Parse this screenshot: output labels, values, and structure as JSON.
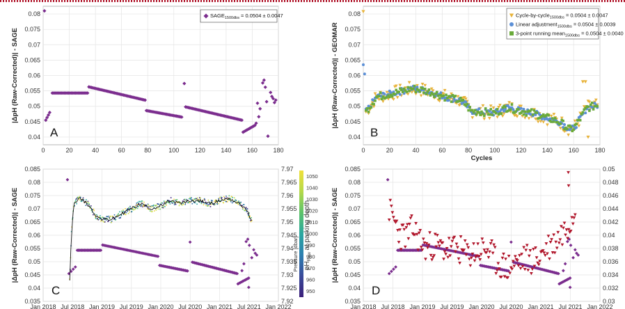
{
  "chart_data": [
    {
      "panel": "A",
      "type": "scatter",
      "ylabel": "|ΔpH (Raw-Corrected)| - SAGE",
      "xlabel": "",
      "xlim": [
        0,
        180
      ],
      "ylim": [
        0.0375,
        0.0825
      ],
      "x_ticks": [
        "0",
        "20",
        "40",
        "60",
        "80",
        "100",
        "120",
        "140",
        "160",
        "180"
      ],
      "y_ticks": [
        "0.04",
        "0.045",
        "0.05",
        "0.055",
        "0.06",
        "0.065",
        "0.07",
        "0.075",
        "0.08"
      ],
      "grid": true,
      "legend": {
        "position": "top-right",
        "entries": [
          {
            "label": "SAGE",
            "sub": "1500dbs",
            "suffix": " = 0.0504 ± 0.0047",
            "color": "#7b2d8e"
          }
        ]
      },
      "segments": [
        {
          "x0": 2,
          "x1": 5,
          "y0": 0.0455,
          "y1": 0.048,
          "n": 4
        },
        {
          "x0": 7,
          "x1": 34,
          "y0": 0.0543,
          "y1": 0.0543,
          "n": 27
        },
        {
          "x0": 35,
          "x1": 78,
          "y0": 0.0563,
          "y1": 0.052,
          "n": 43
        },
        {
          "x0": 79,
          "x1": 106,
          "y0": 0.0486,
          "y1": 0.0465,
          "n": 27
        },
        {
          "x0": 109,
          "x1": 152,
          "y0": 0.0498,
          "y1": 0.0455,
          "n": 43
        },
        {
          "x0": 153,
          "x1": 162,
          "y0": 0.0416,
          "y1": 0.0438,
          "n": 10
        }
      ],
      "points": [
        [
          1,
          0.081
        ],
        [
          108,
          0.0574
        ],
        [
          165,
          0.0466
        ],
        [
          166,
          0.0492
        ],
        [
          168,
          0.0576
        ],
        [
          169,
          0.0585
        ],
        [
          170,
          0.0562
        ],
        [
          171,
          0.0515
        ],
        [
          172,
          0.0403
        ],
        [
          174,
          0.0545
        ],
        [
          175,
          0.0532
        ],
        [
          176,
          0.0525
        ],
        [
          177,
          0.0512
        ],
        [
          178,
          0.052
        ],
        [
          163,
          0.0445
        ],
        [
          164,
          0.051
        ]
      ]
    },
    {
      "panel": "B",
      "type": "scatter",
      "ylabel": "|ΔpH (Raw-Corrected)| - GEOMAR",
      "xlabel": "Cycles",
      "xlim": [
        0,
        180
      ],
      "ylim": [
        0.0375,
        0.0825
      ],
      "x_ticks": [
        "0",
        "20",
        "40",
        "60",
        "80",
        "100",
        "120",
        "140",
        "160",
        "180"
      ],
      "y_ticks": [
        "0.04",
        "0.045",
        "0.05",
        "0.055",
        "0.06",
        "0.065",
        "0.07",
        "0.075",
        "0.08"
      ],
      "grid": true,
      "legend": {
        "position": "top-right",
        "entries": [
          {
            "label": "Cycle-by-cycle",
            "sub": "1500dbs",
            "suffix": " = 0.0504 ± 0.0047",
            "color": "#e8b33a",
            "marker": "triangle-down"
          },
          {
            "label": "Linear adjustment",
            "sub": "1500dbs",
            "suffix": " = 0.0504 ± 0.0039",
            "color": "#5b8fd6",
            "marker": "circle"
          },
          {
            "label": "3-point running mean",
            "sub": "1500dbs",
            "suffix": " = 0.0504 ± 0.0040",
            "color": "#6aaa3a",
            "marker": "square"
          }
        ]
      },
      "trend": [
        [
          0,
          0.047
        ],
        [
          5,
          0.05
        ],
        [
          10,
          0.053
        ],
        [
          20,
          0.054
        ],
        [
          30,
          0.055
        ],
        [
          37,
          0.0558
        ],
        [
          45,
          0.0553
        ],
        [
          55,
          0.0542
        ],
        [
          65,
          0.0527
        ],
        [
          73,
          0.052
        ],
        [
          78,
          0.0505
        ],
        [
          82,
          0.0485
        ],
        [
          90,
          0.0482
        ],
        [
          100,
          0.0478
        ],
        [
          105,
          0.0488
        ],
        [
          110,
          0.0497
        ],
        [
          120,
          0.0485
        ],
        [
          130,
          0.0477
        ],
        [
          140,
          0.0462
        ],
        [
          150,
          0.0448
        ],
        [
          157,
          0.0425
        ],
        [
          160,
          0.0428
        ],
        [
          165,
          0.046
        ],
        [
          170,
          0.0495
        ],
        [
          175,
          0.05
        ],
        [
          180,
          0.0505
        ]
      ],
      "extra_points": [
        [
          0,
          0.0808
        ],
        [
          0,
          0.0635
        ],
        [
          1,
          0.0605
        ],
        [
          167,
          0.058
        ],
        [
          169,
          0.058
        ],
        [
          171,
          0.04
        ]
      ]
    },
    {
      "panel": "C",
      "type": "scatter",
      "ylabel": "|ΔpH (Raw-Corrected)| - SAGE",
      "ylabel_right": "pH",
      "ylabel_right_sub": "Raw",
      "ylabel_right_suffix": " at parking depth",
      "xlim": [
        "2018-01-01",
        "2022-01-01"
      ],
      "x_ticks": [
        "Jan 2018",
        "Jul 2018",
        "Jan 2019",
        "Jul 2019",
        "Jan 2020",
        "Jul 2020",
        "Jan 2021",
        "Jul 2021",
        "Jan 2022"
      ],
      "ylim": [
        0.035,
        0.085
      ],
      "y_ticks": [
        "0.035",
        "0.04",
        "0.045",
        "0.05",
        "0.055",
        "0.06",
        "0.065",
        "0.07",
        "0.075",
        "0.08",
        "0.085"
      ],
      "ylim_right": [
        7.92,
        7.97
      ],
      "y_ticks_right": [
        "7.92",
        "7.925",
        "7.93",
        "7.935",
        "7.94",
        "7.945",
        "7.95",
        "7.955",
        "7.96",
        "7.965",
        "7.97"
      ],
      "colorbar": {
        "label": "Pressure [dbar]",
        "ticks": [
          "950",
          "960",
          "970",
          "980",
          "990",
          "1000",
          "1010",
          "1020",
          "1030",
          "1040",
          "1050"
        ],
        "range": [
          945,
          1055
        ]
      },
      "grid": true,
      "ph_series": [
        [
          "2018-06-15",
          7.928
        ],
        [
          "2018-06-25",
          7.945
        ],
        [
          "2018-07-10",
          7.957
        ],
        [
          "2018-08-15",
          7.959
        ],
        [
          "2018-10-01",
          7.957
        ],
        [
          "2018-12-01",
          7.952
        ],
        [
          "2019-01-01",
          7.951
        ],
        [
          "2019-03-01",
          7.951
        ],
        [
          "2019-05-01",
          7.953
        ],
        [
          "2019-07-01",
          7.955
        ],
        [
          "2019-09-01",
          7.957
        ],
        [
          "2019-11-01",
          7.955
        ],
        [
          "2020-01-01",
          7.956
        ],
        [
          "2020-03-01",
          7.958
        ],
        [
          "2020-05-01",
          7.957
        ],
        [
          "2020-07-01",
          7.958
        ],
        [
          "2020-09-01",
          7.958
        ],
        [
          "2020-11-01",
          7.957
        ],
        [
          "2021-01-01",
          7.958
        ],
        [
          "2021-03-01",
          7.959
        ],
        [
          "2021-05-01",
          7.957
        ],
        [
          "2021-06-15",
          7.955
        ],
        [
          "2021-07-20",
          7.95
        ]
      ]
    },
    {
      "panel": "D",
      "type": "scatter",
      "ylabel": "|ΔpH (Raw-Corrected)| - SAGE",
      "xlim": [
        "2018-01-01",
        "2022-01-01"
      ],
      "x_ticks": [
        "Jan 2018",
        "Jul 2018",
        "Jan 2019",
        "Jul 2019",
        "Jan 2020",
        "Jul 2020",
        "Jan 2021",
        "Jul 2021",
        "Jan 2022"
      ],
      "ylim": [
        0.035,
        0.085
      ],
      "y_ticks": [
        "0.035",
        "0.04",
        "0.045",
        "0.05",
        "0.055",
        "0.06",
        "0.065",
        "0.07",
        "0.075",
        "0.08",
        "0.085"
      ],
      "ylim_right": [
        0.03,
        0.05
      ],
      "y_ticks_right": [
        "0.03",
        "0.032",
        "0.034",
        "0.036",
        "0.038",
        "0.04",
        "0.042",
        "0.044",
        "0.046",
        "0.048",
        "0.05"
      ],
      "grid": true,
      "red_series": [
        [
          "2018-06-10",
          0.044
        ],
        [
          "2018-06-20",
          0.043
        ],
        [
          "2018-07-15",
          0.042
        ],
        [
          "2018-08-20",
          0.04
        ],
        [
          "2018-10-01",
          0.04
        ],
        [
          "2018-11-01",
          0.041
        ],
        [
          "2018-12-01",
          0.04
        ],
        [
          "2019-01-15",
          0.038
        ],
        [
          "2019-03-01",
          0.0385
        ],
        [
          "2019-05-01",
          0.038
        ],
        [
          "2019-06-15",
          0.0378
        ],
        [
          "2019-08-01",
          0.038
        ],
        [
          "2019-10-01",
          0.037
        ],
        [
          "2019-12-01",
          0.0375
        ],
        [
          "2020-02-01",
          0.038
        ],
        [
          "2020-04-01",
          0.036
        ],
        [
          "2020-06-01",
          0.035
        ],
        [
          "2020-08-01",
          0.0358
        ],
        [
          "2020-10-01",
          0.0365
        ],
        [
          "2020-12-01",
          0.0362
        ],
        [
          "2021-02-01",
          0.038
        ],
        [
          "2021-04-01",
          0.039
        ],
        [
          "2021-06-01",
          0.041
        ],
        [
          "2021-07-15",
          0.043
        ],
        [
          "2021-08-01",
          0.044
        ]
      ]
    }
  ],
  "purple_date_points": [
    [
      "2018-06-01",
      0.081
    ],
    [
      "2020-07-01",
      0.0574
    ],
    [
      "2021-05-20",
      0.0466
    ],
    [
      "2021-06-01",
      0.0492
    ],
    [
      "2021-06-15",
      0.0576
    ],
    [
      "2021-06-25",
      0.0585
    ],
    [
      "2021-07-05",
      0.0562
    ],
    [
      "2021-07-20",
      0.0515
    ],
    [
      "2021-07-01",
      0.0403
    ],
    [
      "2021-08-01",
      0.0545
    ],
    [
      "2021-08-10",
      0.0532
    ],
    [
      "2021-08-20",
      0.0525
    ]
  ],
  "purple_date_segments": [
    [
      "2018-06-10",
      "2018-07-20",
      0.0455,
      0.048,
      4
    ],
    [
      "2018-08-01",
      "2018-12-25",
      0.0543,
      0.0543,
      27
    ],
    [
      "2019-01-05",
      "2019-12-15",
      0.0563,
      0.052,
      43
    ],
    [
      "2019-12-25",
      "2020-06-15",
      0.0486,
      0.0465,
      27
    ],
    [
      "2020-07-15",
      "2021-04-20",
      0.0498,
      0.0455,
      43
    ],
    [
      "2021-04-25",
      "2021-07-01",
      0.0416,
      0.0438,
      10
    ]
  ],
  "colors": {
    "purple": "#7b2d8e",
    "red": "#b0152a",
    "orange": "#e8b33a",
    "blue": "#5b8fd6",
    "green": "#6aaa3a",
    "topline": "#b0152a"
  },
  "panel_letters": [
    "A",
    "B",
    "C",
    "D"
  ]
}
